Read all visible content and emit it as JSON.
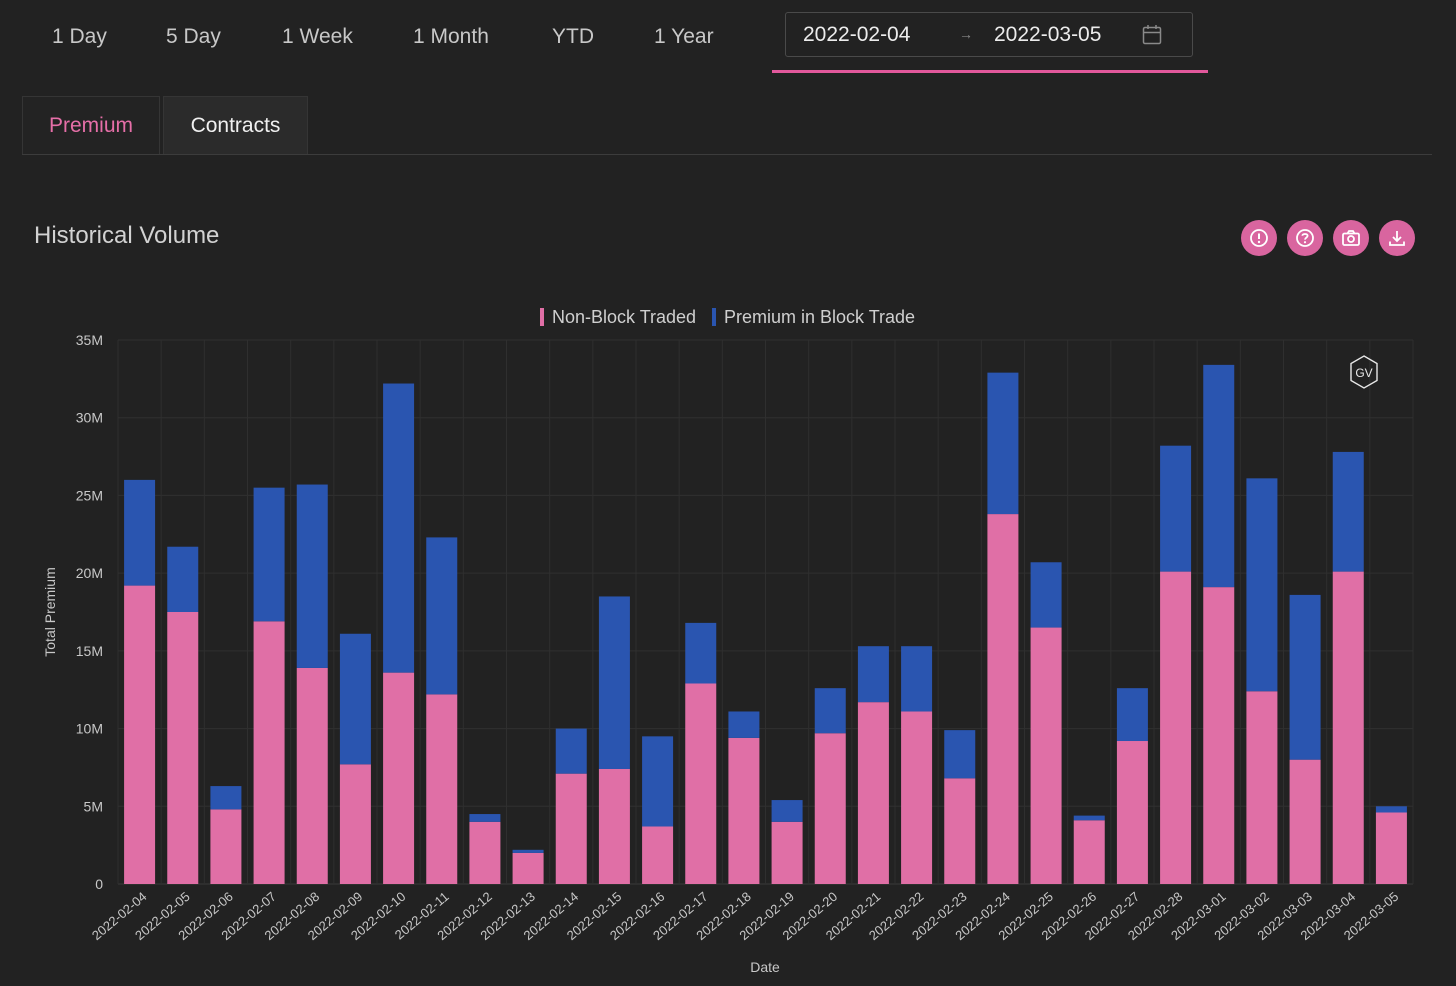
{
  "range_buttons": [
    "1 Day",
    "5 Day",
    "1 Week",
    "1 Month",
    "YTD",
    "1 Year"
  ],
  "date_range": {
    "start": "2022-02-04",
    "end": "2022-03-05",
    "separator": "→"
  },
  "tabs": [
    {
      "label": "Premium",
      "active": true
    },
    {
      "label": "Contracts",
      "active": false
    }
  ],
  "chart_title": "Historical Volume",
  "toolbar_icons": [
    "alert-icon",
    "help-icon",
    "camera-icon",
    "download-icon"
  ],
  "watermark": "GV",
  "colors": {
    "non_block": "#e06fa6",
    "block": "#2a55b0",
    "accent": "#e2589c",
    "background": "#222222"
  },
  "chart_data": {
    "type": "bar",
    "stacked": true,
    "xlabel": "Date",
    "ylabel": "Total Premium",
    "ylim": [
      0,
      35000000
    ],
    "yticks": [
      0,
      5000000,
      10000000,
      15000000,
      20000000,
      25000000,
      30000000,
      35000000
    ],
    "ytick_labels": [
      "0",
      "5M",
      "10M",
      "15M",
      "20M",
      "25M",
      "30M",
      "35M"
    ],
    "legend_position": "top-center",
    "grid": true,
    "categories": [
      "2022-02-04",
      "2022-02-05",
      "2022-02-06",
      "2022-02-07",
      "2022-02-08",
      "2022-02-09",
      "2022-02-10",
      "2022-02-11",
      "2022-02-12",
      "2022-02-13",
      "2022-02-14",
      "2022-02-15",
      "2022-02-16",
      "2022-02-17",
      "2022-02-18",
      "2022-02-19",
      "2022-02-20",
      "2022-02-21",
      "2022-02-22",
      "2022-02-23",
      "2022-02-24",
      "2022-02-25",
      "2022-02-26",
      "2022-02-27",
      "2022-02-28",
      "2022-03-01",
      "2022-03-02",
      "2022-03-03",
      "2022-03-04",
      "2022-03-05"
    ],
    "series": [
      {
        "name": "Non-Block Traded",
        "color": "#e06fa6",
        "values": [
          19200000,
          17500000,
          4800000,
          16900000,
          13900000,
          7700000,
          13600000,
          12200000,
          4000000,
          2000000,
          7100000,
          7400000,
          3700000,
          12900000,
          9400000,
          4000000,
          9700000,
          11700000,
          11100000,
          6800000,
          23800000,
          16500000,
          4100000,
          9200000,
          20100000,
          19100000,
          12400000,
          8000000,
          20100000,
          4600000
        ]
      },
      {
        "name": "Premium in Block Trade",
        "color": "#2a55b0",
        "values": [
          6800000,
          4200000,
          1500000,
          8600000,
          11800000,
          8400000,
          18600000,
          10100000,
          500000,
          200000,
          2900000,
          11100000,
          5800000,
          3900000,
          1700000,
          1400000,
          2900000,
          3600000,
          4200000,
          3100000,
          9100000,
          4200000,
          300000,
          3400000,
          8100000,
          14300000,
          13700000,
          10600000,
          7700000,
          400000
        ]
      }
    ]
  }
}
